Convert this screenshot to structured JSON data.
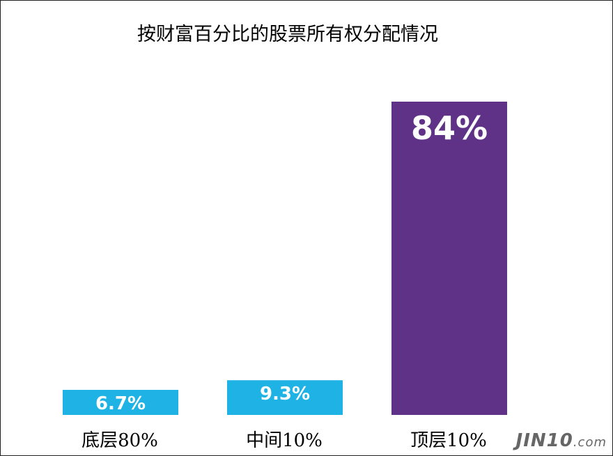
{
  "watermark": {
    "main": "JIN10",
    "domain": ".com"
  },
  "chart_data": {
    "type": "bar",
    "title": "按财富百分比的股票所有权分配情况",
    "categories": [
      "底层80%",
      "中间10%",
      "顶层10%"
    ],
    "values": [
      6.7,
      9.3,
      84
    ],
    "value_labels": [
      "6.7%",
      "9.3%",
      "84%"
    ],
    "colors": [
      "#1fb3e5",
      "#1fb3e5",
      "#5f3287"
    ],
    "ylim": [
      0,
      84
    ],
    "grid": false,
    "legend": "none"
  }
}
